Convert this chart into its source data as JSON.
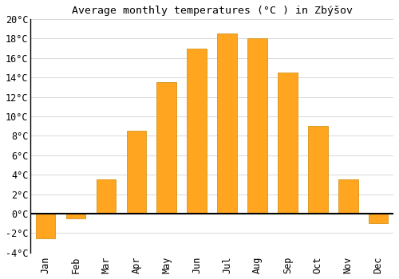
{
  "title": "Average monthly temperatures (°C ) in Zbýšov",
  "months": [
    "Jan",
    "Feb",
    "Mar",
    "Apr",
    "May",
    "Jun",
    "Jul",
    "Aug",
    "Sep",
    "Oct",
    "Nov",
    "Dec"
  ],
  "values": [
    -2.5,
    -0.5,
    3.5,
    8.5,
    13.5,
    17.0,
    18.5,
    18.0,
    14.5,
    9.0,
    3.5,
    -1.0
  ],
  "bar_color": "#FFA520",
  "bar_edge_color": "#CC8800",
  "ylim": [
    -4,
    20
  ],
  "yticks": [
    -4,
    -2,
    0,
    2,
    4,
    6,
    8,
    10,
    12,
    14,
    16,
    18,
    20
  ],
  "background_color": "#FFFFFF",
  "grid_color": "#D8D8D8",
  "title_fontsize": 9.5,
  "tick_fontsize": 8.5,
  "bar_width": 0.65
}
